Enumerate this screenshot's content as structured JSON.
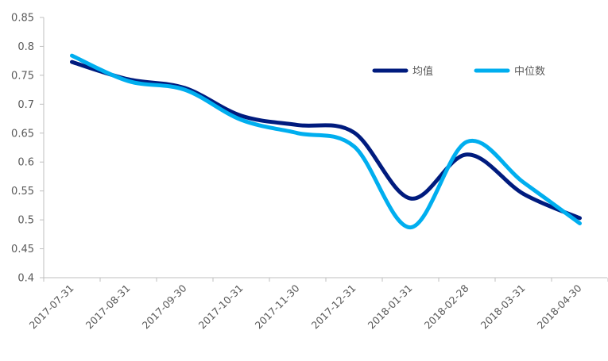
{
  "chart_data": {
    "type": "line",
    "categories": [
      "2017-07-31",
      "2017-08-31",
      "2017-09-30",
      "2017-10-31",
      "2017-11-30",
      "2017-12-31",
      "2018-01-31",
      "2018-02-28",
      "2018-03-31",
      "2018-04-30"
    ],
    "series": [
      {
        "name": "均值",
        "color": "#001B7E",
        "values": [
          0.773,
          0.743,
          0.728,
          0.68,
          0.664,
          0.651,
          0.537,
          0.613,
          0.545,
          0.503
        ]
      },
      {
        "name": "中位数",
        "color": "#00AEEF",
        "values": [
          0.784,
          0.74,
          0.725,
          0.673,
          0.65,
          0.627,
          0.487,
          0.635,
          0.565,
          0.494
        ]
      }
    ],
    "ylim": [
      0.4,
      0.85
    ],
    "yticks": [
      "0.4",
      "0.45",
      "0.5",
      "0.55",
      "0.6",
      "0.65",
      "0.7",
      "0.75",
      "0.8",
      "0.85"
    ],
    "grid": false,
    "legend_position": "top-right",
    "title": "",
    "xlabel": "",
    "ylabel": ""
  }
}
